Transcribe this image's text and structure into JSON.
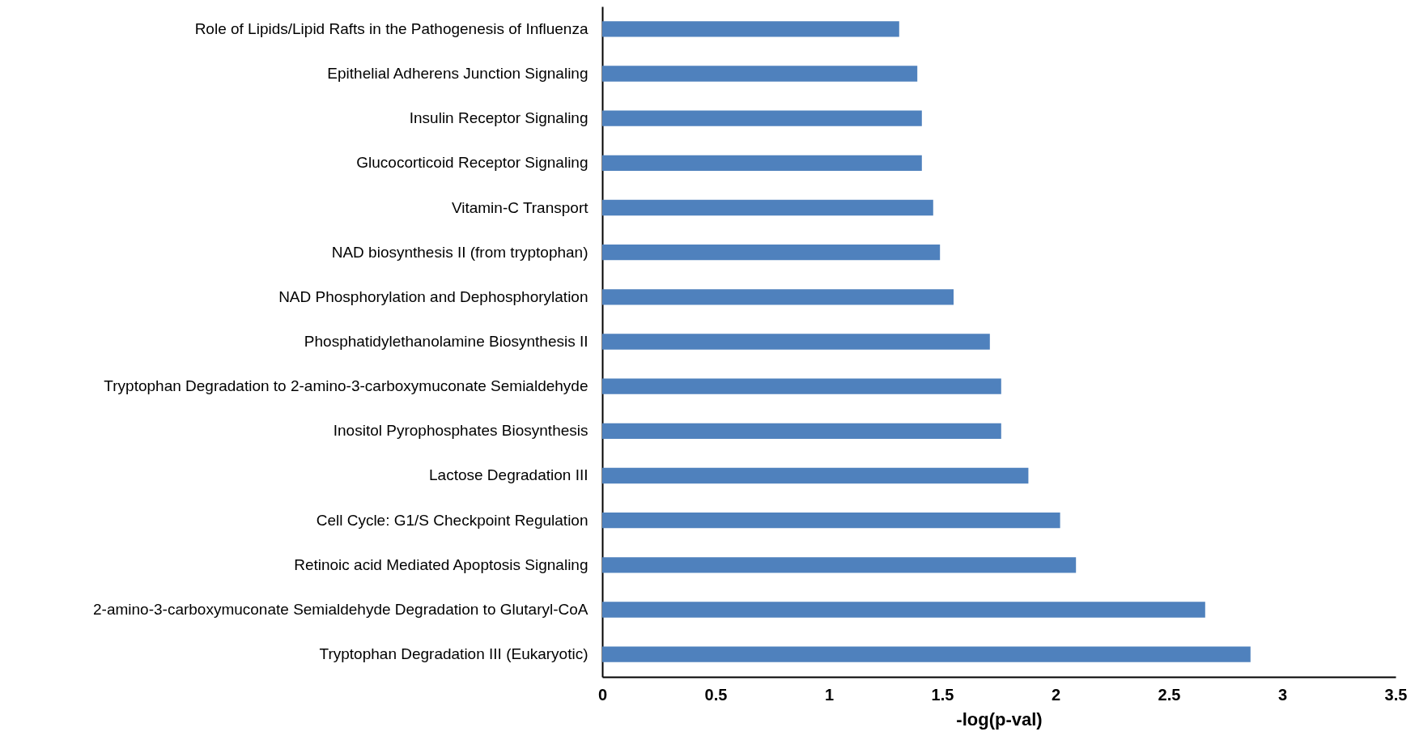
{
  "chart_data": {
    "type": "bar",
    "orientation": "horizontal",
    "xlabel": "-log(p-val)",
    "categories": [
      "Role of Lipids/Lipid Rafts in the Pathogenesis of Influenza",
      "Epithelial Adherens Junction Signaling",
      "Insulin Receptor Signaling",
      "Glucocorticoid Receptor Signaling",
      "Vitamin-C Transport",
      "NAD biosynthesis II (from tryptophan)",
      "NAD Phosphorylation and Dephosphorylation",
      "Phosphatidylethanolamine Biosynthesis II",
      "Tryptophan Degradation to 2-amino-3-carboxymuconate Semialdehyde",
      "Inositol Pyrophosphates Biosynthesis",
      "Lactose Degradation III",
      "Cell Cycle: G1/S Checkpoint Regulation",
      "Retinoic acid Mediated Apoptosis Signaling",
      "2-amino-3-carboxymuconate Semialdehyde Degradation to Glutaryl-CoA",
      "Tryptophan Degradation III (Eukaryotic)"
    ],
    "values": [
      1.31,
      1.39,
      1.41,
      1.41,
      1.46,
      1.49,
      1.55,
      1.71,
      1.76,
      1.76,
      1.88,
      2.02,
      2.09,
      2.66,
      2.86
    ],
    "color": "#4f81bd",
    "xlim": [
      0,
      3.5
    ],
    "xticks": [
      0,
      0.5,
      1,
      1.5,
      2,
      2.5,
      3,
      3.5
    ]
  }
}
